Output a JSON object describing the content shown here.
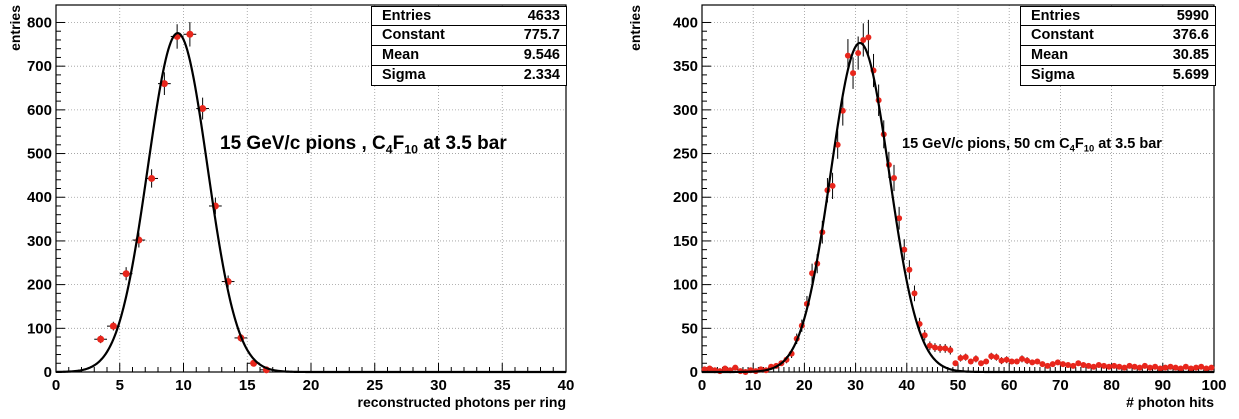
{
  "chart_data": [
    {
      "type": "histogram",
      "xlabel": "reconstructed photons per ring",
      "ylabel": "entries",
      "xlim": [
        0,
        40
      ],
      "ylim": [
        0,
        840
      ],
      "x_ticks": [
        0,
        5,
        10,
        15,
        20,
        25,
        30,
        35,
        40
      ],
      "y_ticks": [
        0,
        100,
        200,
        300,
        400,
        500,
        600,
        700,
        800
      ],
      "grid": true,
      "annotation": {
        "text_before": "15 GeV/c pions , C",
        "sub1": "4",
        "mid": "F",
        "sub2": "10",
        "text_after": " at 3.5 bar"
      },
      "stats": [
        {
          "label": "Entries",
          "value": "4633"
        },
        {
          "label": "Constant",
          "value": "775.7"
        },
        {
          "label": "Mean",
          "value": "9.546"
        },
        {
          "label": "Sigma",
          "value": "2.334"
        }
      ],
      "fit": {
        "function": "gaussian",
        "constant": 775.7,
        "mean": 9.546,
        "sigma": 2.334
      },
      "series": [
        {
          "x": [
            3.5,
            4.5,
            5.5,
            6.5,
            7.5,
            8.5,
            9.5,
            10.5,
            11.5,
            12.5,
            13.5,
            14.5,
            15.5,
            16.5
          ],
          "y": [
            75,
            105,
            225,
            302,
            443,
            660,
            768,
            773,
            603,
            380,
            207,
            78,
            20,
            5
          ],
          "err": [
            9,
            10,
            15,
            17,
            21,
            26,
            28,
            28,
            25,
            19,
            14,
            9,
            4,
            2
          ]
        }
      ],
      "colors": {
        "points": "#e8261c",
        "fit": "#000000",
        "grid": "#9a9a9a"
      }
    },
    {
      "type": "histogram",
      "xlabel": "# photon hits",
      "ylabel": "entries",
      "xlim": [
        0,
        100
      ],
      "ylim": [
        0,
        420
      ],
      "x_ticks": [
        0,
        10,
        20,
        30,
        40,
        50,
        60,
        70,
        80,
        90,
        100
      ],
      "y_ticks": [
        0,
        50,
        100,
        150,
        200,
        250,
        300,
        350,
        400
      ],
      "grid": true,
      "annotation": {
        "text_before": "15 GeV/c pions, 50 cm C",
        "sub1": "4",
        "mid": "F",
        "sub2": "10",
        "text_after": " at 3.5 bar"
      },
      "stats": [
        {
          "label": "Entries",
          "value": "5990"
        },
        {
          "label": "Constant",
          "value": "376.6"
        },
        {
          "label": "Mean",
          "value": "30.85"
        },
        {
          "label": "Sigma",
          "value": "5.699"
        }
      ],
      "fit": {
        "function": "gaussian",
        "constant": 376.6,
        "mean": 30.85,
        "sigma": 5.699
      },
      "series": [
        {
          "x": [
            0.5,
            1.5,
            2.5,
            3.5,
            4.5,
            5.5,
            6.5,
            7.5,
            8.5,
            9.5,
            10.5,
            11.5,
            12.5,
            13.5,
            14.5,
            15.5,
            16.5,
            17.5,
            18.5,
            19.5,
            20.5,
            21.5,
            22.5,
            23.5,
            24.5,
            25.5,
            26.5,
            27.5,
            28.5,
            29.5,
            30.5,
            31.5,
            32.5,
            33.5,
            34.5,
            35.5,
            36.5,
            37.5,
            38.5,
            39.5,
            40.5,
            41.5,
            42.5,
            43.5,
            44.5,
            45.5,
            46.5,
            47.5,
            48.5,
            49.5,
            50.5,
            51.5,
            52.5,
            53.5,
            54.5,
            55.5,
            56.5,
            57.5,
            58.5,
            59.5,
            60.5,
            61.5,
            62.5,
            63.5,
            64.5,
            65.5,
            66.5,
            67.5,
            68.5,
            69.5,
            70.5,
            71.5,
            72.5,
            73.5,
            74.5,
            75.5,
            76.5,
            77.5,
            78.5,
            79.5,
            80.5,
            81.5,
            82.5,
            83.5,
            84.5,
            85.5,
            86.5,
            87.5,
            88.5,
            89.5,
            90.5,
            91.5,
            92.5,
            93.5,
            94.5,
            95.5,
            96.5,
            97.5,
            98.5,
            99.5
          ],
          "y": [
            3,
            4,
            2,
            1,
            4,
            2,
            5,
            1,
            0,
            2,
            1,
            3,
            2,
            6,
            7,
            10,
            14,
            21,
            38,
            53,
            78,
            113,
            124,
            160,
            208,
            213,
            260,
            299,
            362,
            342,
            365,
            380,
            383,
            345,
            311,
            272,
            237,
            222,
            176,
            140,
            117,
            90,
            55,
            42,
            30,
            28,
            27,
            27,
            25,
            10,
            16,
            17,
            12,
            15,
            10,
            12,
            18,
            17,
            13,
            14,
            12,
            12,
            15,
            13,
            11,
            12,
            9,
            7,
            9,
            11,
            9,
            8,
            7,
            10,
            8,
            7,
            6,
            8,
            7,
            6,
            7,
            6,
            5,
            7,
            6,
            5,
            7,
            5,
            6,
            4,
            5,
            6,
            5,
            4,
            6,
            4,
            5,
            6,
            4,
            5
          ],
          "err": [
            2,
            2,
            1,
            1,
            2,
            1,
            2,
            1,
            0,
            1,
            1,
            2,
            1,
            2,
            3,
            3,
            4,
            5,
            6,
            7,
            9,
            11,
            11,
            13,
            14,
            15,
            16,
            17,
            19,
            18,
            19,
            19,
            20,
            19,
            18,
            16,
            15,
            15,
            13,
            12,
            11,
            9,
            7,
            6,
            5,
            5,
            5,
            5,
            5,
            3,
            4,
            4,
            3,
            4,
            3,
            3,
            4,
            4,
            4,
            4,
            3,
            3,
            4,
            4,
            3,
            3,
            3,
            3,
            3,
            3,
            3,
            3,
            3,
            3,
            3,
            3,
            2,
            3,
            3,
            2,
            3,
            2,
            2,
            3,
            2,
            2,
            3,
            2,
            2,
            2,
            2,
            2,
            2,
            2,
            2,
            2,
            2,
            2,
            2,
            2
          ]
        }
      ],
      "colors": {
        "points": "#e8261c",
        "fit": "#000000",
        "grid": "#9a9a9a"
      }
    }
  ]
}
